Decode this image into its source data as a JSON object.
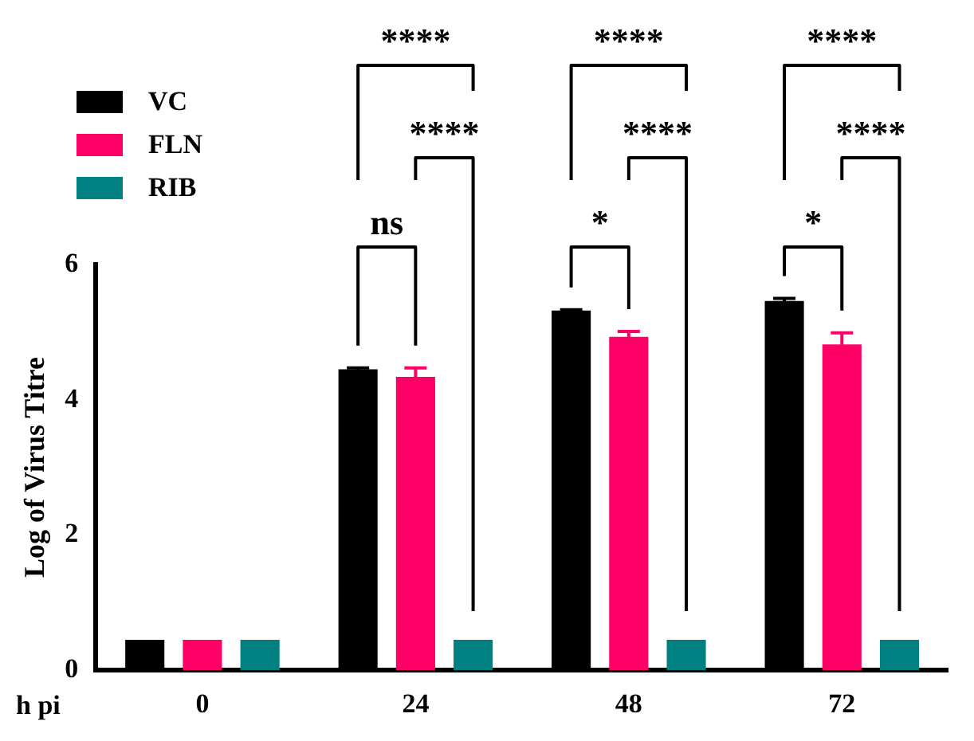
{
  "chart_data": {
    "type": "bar",
    "xlabel": "h pi",
    "ylabel": "Log of Virus Titre",
    "categories": [
      "0",
      "24",
      "48",
      "72"
    ],
    "series": [
      {
        "name": "VC",
        "color": "#000000",
        "values": [
          0.45,
          4.45,
          5.32,
          5.46
        ],
        "errors": [
          null,
          0.02,
          0.01,
          0.04
        ]
      },
      {
        "name": "FLN",
        "color": "#ff0066",
        "values": [
          0.45,
          4.34,
          4.93,
          4.82
        ],
        "errors": [
          null,
          0.13,
          0.08,
          0.17
        ]
      },
      {
        "name": "RIB",
        "color": "#008080",
        "values": [
          0.45,
          0.45,
          0.45,
          0.45
        ],
        "errors": [
          null,
          null,
          null,
          null
        ]
      }
    ],
    "ylim": [
      0,
      6
    ],
    "yticks": [
      0,
      2,
      4,
      6
    ],
    "grid": false,
    "legend": "top left",
    "annotations": [
      "****",
      "****",
      "ns",
      "****",
      "****",
      "*",
      "****",
      "****",
      "*"
    ]
  }
}
